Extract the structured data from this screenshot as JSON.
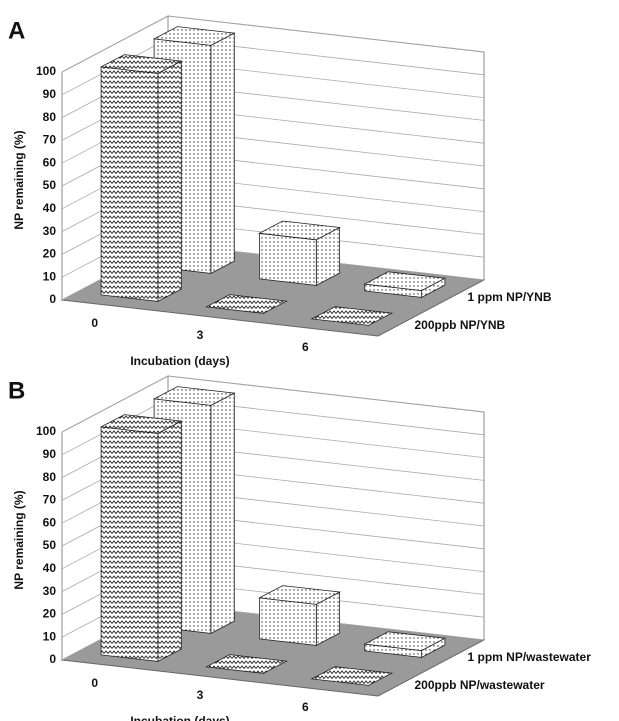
{
  "chart_data": [
    {
      "type": "bar3d",
      "panel": "A",
      "ylabel": "NP remaining (%)",
      "xlabel": "Incubation (days)",
      "categories": [
        "0",
        "3",
        "6"
      ],
      "series": [
        {
          "name": "200ppb NP/YNB",
          "color": "#ffffff",
          "pattern": "zigzag",
          "values": [
            100,
            0,
            0
          ]
        },
        {
          "name": "1 ppm NP/YNB",
          "color": "#ffffff",
          "pattern": "dots",
          "values": [
            100,
            20,
            3
          ]
        }
      ],
      "ylim": [
        0,
        100
      ],
      "yticks": [
        0,
        10,
        20,
        30,
        40,
        50,
        60,
        70,
        80,
        90,
        100
      ],
      "grid": true
    },
    {
      "type": "bar3d",
      "panel": "B",
      "ylabel": "NP remaining (%)",
      "xlabel": "Incubation (days)",
      "categories": [
        "0",
        "3",
        "6"
      ],
      "series": [
        {
          "name": "200ppb NP/wastewater",
          "color": "#ffffff",
          "pattern": "zigzag",
          "values": [
            100,
            0,
            0
          ]
        },
        {
          "name": "1 ppm NP/wastewater",
          "color": "#ffffff",
          "pattern": "dots",
          "values": [
            100,
            18,
            3
          ]
        }
      ],
      "ylim": [
        0,
        100
      ],
      "yticks": [
        0,
        10,
        20,
        30,
        40,
        50,
        60,
        70,
        80,
        90,
        100
      ],
      "grid": true
    }
  ]
}
